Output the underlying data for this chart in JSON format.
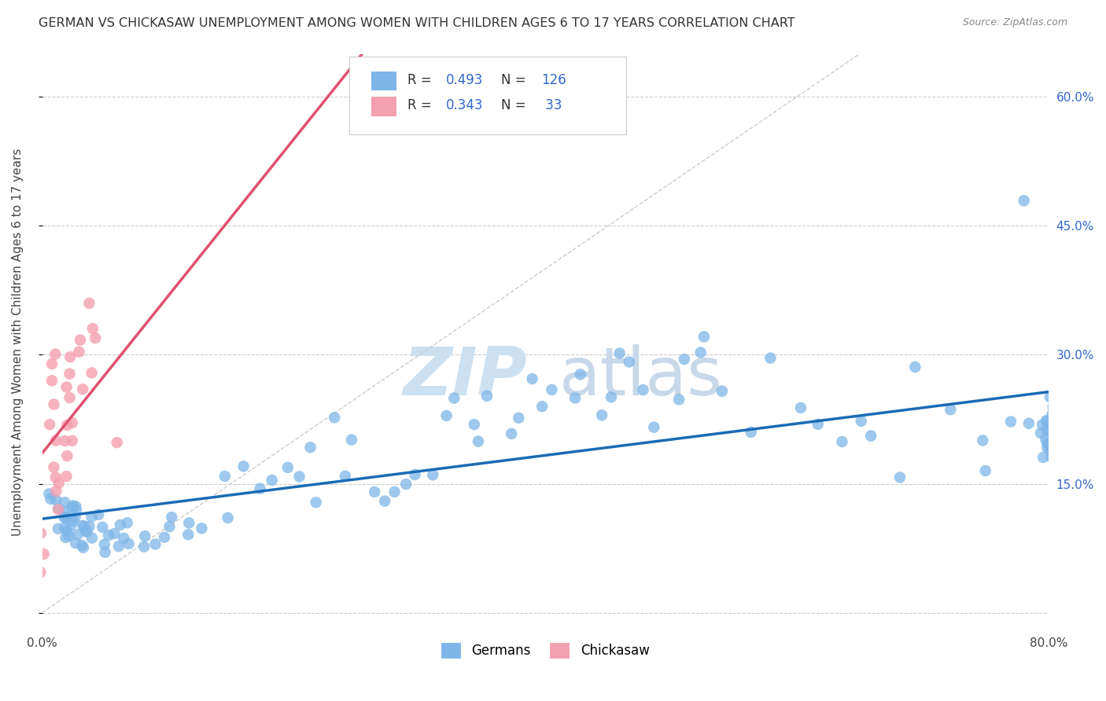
{
  "title": "GERMAN VS CHICKASAW UNEMPLOYMENT AMONG WOMEN WITH CHILDREN AGES 6 TO 17 YEARS CORRELATION CHART",
  "source": "Source: ZipAtlas.com",
  "ylabel": "Unemployment Among Women with Children Ages 6 to 17 years",
  "xlim": [
    0.0,
    0.8
  ],
  "ylim": [
    -0.02,
    0.65
  ],
  "xticks": [
    0.0,
    0.2,
    0.4,
    0.6,
    0.8
  ],
  "xticklabels": [
    "0.0%",
    "",
    "",
    "",
    "80.0%"
  ],
  "yticks": [
    0.0,
    0.15,
    0.3,
    0.45,
    0.6
  ],
  "yticklabels_right": [
    "",
    "15.0%",
    "30.0%",
    "45.0%",
    "60.0%"
  ],
  "background_color": "#ffffff",
  "grid_color": "#cccccc",
  "german_color": "#7EB6E8",
  "chickasaw_color": "#F4A0B0",
  "german_line_color": "#1a6bb5",
  "chickasaw_line_color": "#e05070",
  "diagonal_color": "#cccccc",
  "r_german": 0.493,
  "n_german": 126,
  "r_chickasaw": 0.343,
  "n_chickasaw": 33,
  "legend_color": "#3366cc",
  "german_x": [
    0.01,
    0.01,
    0.01,
    0.01,
    0.02,
    0.02,
    0.02,
    0.02,
    0.02,
    0.02,
    0.02,
    0.02,
    0.02,
    0.02,
    0.02,
    0.02,
    0.02,
    0.02,
    0.02,
    0.02,
    0.03,
    0.03,
    0.03,
    0.03,
    0.03,
    0.03,
    0.03,
    0.04,
    0.04,
    0.04,
    0.04,
    0.04,
    0.05,
    0.05,
    0.05,
    0.05,
    0.05,
    0.06,
    0.06,
    0.06,
    0.07,
    0.07,
    0.07,
    0.08,
    0.08,
    0.09,
    0.09,
    0.1,
    0.1,
    0.11,
    0.12,
    0.13,
    0.14,
    0.15,
    0.16,
    0.17,
    0.18,
    0.19,
    0.2,
    0.21,
    0.22,
    0.23,
    0.24,
    0.25,
    0.26,
    0.27,
    0.28,
    0.29,
    0.3,
    0.31,
    0.32,
    0.33,
    0.34,
    0.35,
    0.36,
    0.37,
    0.38,
    0.39,
    0.4,
    0.41,
    0.42,
    0.43,
    0.44,
    0.45,
    0.46,
    0.47,
    0.48,
    0.49,
    0.5,
    0.51,
    0.52,
    0.53,
    0.54,
    0.56,
    0.58,
    0.6,
    0.62,
    0.64,
    0.65,
    0.66,
    0.68,
    0.7,
    0.72,
    0.74,
    0.75,
    0.77,
    0.78,
    0.79,
    0.8,
    0.8,
    0.8,
    0.8,
    0.8,
    0.8,
    0.8,
    0.8,
    0.8,
    0.8,
    0.8,
    0.8,
    0.8,
    0.8,
    0.8,
    0.8,
    0.8,
    0.8
  ],
  "german_y": [
    0.13,
    0.12,
    0.13,
    0.14,
    0.12,
    0.11,
    0.1,
    0.11,
    0.12,
    0.11,
    0.13,
    0.09,
    0.12,
    0.1,
    0.09,
    0.11,
    0.12,
    0.08,
    0.1,
    0.09,
    0.1,
    0.09,
    0.12,
    0.1,
    0.11,
    0.09,
    0.08,
    0.1,
    0.09,
    0.1,
    0.11,
    0.08,
    0.11,
    0.1,
    0.09,
    0.08,
    0.07,
    0.1,
    0.09,
    0.08,
    0.1,
    0.09,
    0.08,
    0.09,
    0.08,
    0.08,
    0.09,
    0.1,
    0.11,
    0.1,
    0.09,
    0.1,
    0.16,
    0.11,
    0.17,
    0.14,
    0.15,
    0.17,
    0.16,
    0.2,
    0.13,
    0.23,
    0.16,
    0.2,
    0.14,
    0.13,
    0.14,
    0.15,
    0.16,
    0.17,
    0.23,
    0.25,
    0.22,
    0.2,
    0.25,
    0.21,
    0.22,
    0.27,
    0.24,
    0.26,
    0.25,
    0.28,
    0.23,
    0.25,
    0.3,
    0.29,
    0.26,
    0.22,
    0.25,
    0.29,
    0.3,
    0.32,
    0.26,
    0.21,
    0.3,
    0.24,
    0.22,
    0.2,
    0.22,
    0.21,
    0.16,
    0.29,
    0.24,
    0.2,
    0.17,
    0.22,
    0.48,
    0.22,
    0.25,
    0.22,
    0.21,
    0.24,
    0.2,
    0.19,
    0.23,
    0.21,
    0.18,
    0.2,
    0.22,
    0.21,
    0.19,
    0.23,
    0.2,
    0.18,
    0.21,
    0.22
  ],
  "chickasaw_x": [
    0.0,
    0.0,
    0.0,
    0.01,
    0.01,
    0.01,
    0.01,
    0.01,
    0.01,
    0.01,
    0.01,
    0.01,
    0.01,
    0.01,
    0.02,
    0.02,
    0.02,
    0.02,
    0.02,
    0.02,
    0.02,
    0.02,
    0.02,
    0.02,
    0.03,
    0.03,
    0.03,
    0.04,
    0.04,
    0.04,
    0.04,
    0.06,
    0.25
  ],
  "chickasaw_y": [
    0.05,
    0.09,
    0.07,
    0.14,
    0.12,
    0.15,
    0.16,
    0.2,
    0.17,
    0.24,
    0.22,
    0.27,
    0.29,
    0.3,
    0.26,
    0.2,
    0.22,
    0.28,
    0.25,
    0.3,
    0.22,
    0.18,
    0.2,
    0.16,
    0.26,
    0.32,
    0.3,
    0.28,
    0.33,
    0.32,
    0.36,
    0.2,
    0.6
  ]
}
